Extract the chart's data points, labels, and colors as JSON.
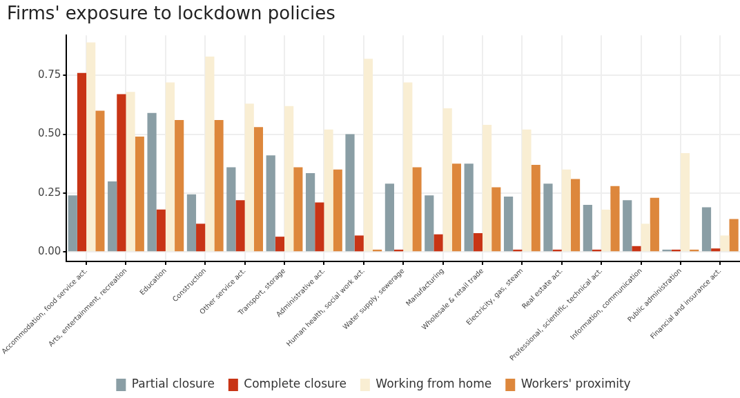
{
  "chart_data": {
    "type": "bar",
    "title": "Firms' exposure to lockdown policies",
    "categories": [
      "Accommodation, food service act.",
      "Arts, entertainment, recreation",
      "Education",
      "Construction",
      "Other service act.",
      "Transport, storage",
      "Administrative act.",
      "Human health, social work act.",
      "Water supply, sewerage",
      "Manufacturing",
      "Wholesale & retail trade",
      "Electricity, gas, steam",
      "Real estate act.",
      "Professional, scientific, technical act.",
      "Information, communication",
      "Public administration",
      "Financial and insurance act."
    ],
    "series": [
      {
        "name": "Partial closure",
        "color": "#8a9ea5",
        "values": [
          0.24,
          0.3,
          0.59,
          0.245,
          0.36,
          0.41,
          0.335,
          0.5,
          0.29,
          0.24,
          0.375,
          0.235,
          0.29,
          0.2,
          0.22,
          0.01,
          0.19
        ]
      },
      {
        "name": "Complete closure",
        "color": "#c83415",
        "values": [
          0.76,
          0.67,
          0.18,
          0.12,
          0.22,
          0.065,
          0.21,
          0.07,
          0.01,
          0.075,
          0.08,
          0.01,
          0.01,
          0.01,
          0.025,
          0.01,
          0.015
        ]
      },
      {
        "name": "Working from home",
        "color": "#f9eed3",
        "values": [
          0.89,
          0.68,
          0.72,
          0.83,
          0.63,
          0.62,
          0.52,
          0.82,
          0.72,
          0.61,
          0.54,
          0.52,
          0.35,
          0.18,
          0.12,
          0.42,
          0.07
        ]
      },
      {
        "name": "Workers' proximity",
        "color": "#dd873c",
        "values": [
          0.6,
          0.49,
          0.56,
          0.56,
          0.53,
          0.36,
          0.35,
          0.01,
          0.36,
          0.375,
          0.275,
          0.37,
          0.31,
          0.28,
          0.23,
          0.01,
          0.14
        ]
      }
    ],
    "ylim": [
      -0.04,
      0.92
    ],
    "yticks": [
      {
        "value": 0,
        "label": "0.00"
      },
      {
        "value": 0.25,
        "label": "0.25"
      },
      {
        "value": 0.5,
        "label": "0.50"
      },
      {
        "value": 0.75,
        "label": "0.75"
      }
    ],
    "grid": true,
    "legend": "bottom"
  }
}
